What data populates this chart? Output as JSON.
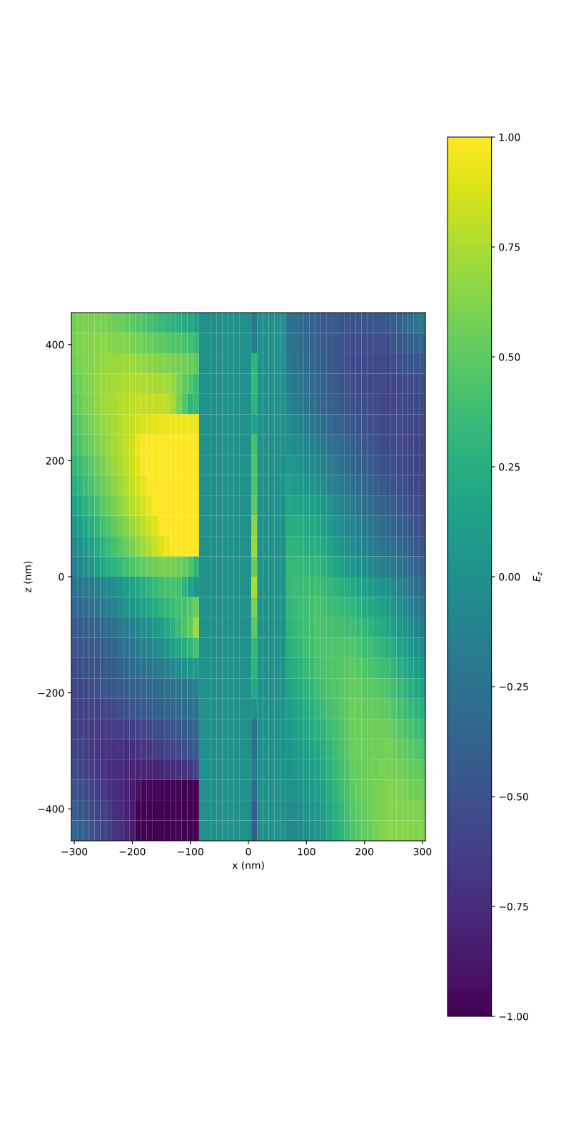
{
  "chart_data": {
    "type": "heatmap",
    "xlabel": "x (nm)",
    "ylabel": "z (nm)",
    "clabel": "E$_{z}$",
    "xlim": [
      -305,
      305
    ],
    "ylim": [
      -455,
      455
    ],
    "xticks": [
      -300,
      -200,
      -100,
      0,
      100,
      200,
      300
    ],
    "yticks": [
      -400,
      -200,
      0,
      200,
      400
    ],
    "clim": [
      -1,
      1
    ],
    "cticks": [
      {
        "value": -1,
        "label": "−1.00"
      },
      {
        "value": -0.75,
        "label": "−0.75"
      },
      {
        "value": -0.5,
        "label": "−0.50"
      },
      {
        "value": -0.25,
        "label": "−0.25"
      },
      {
        "value": 0,
        "label": "0.00"
      },
      {
        "value": 0.25,
        "label": "0.25"
      },
      {
        "value": 0.5,
        "label": "0.50"
      },
      {
        "value": 0.75,
        "label": "0.75"
      },
      {
        "value": 1,
        "label": "1.00"
      }
    ],
    "cells": [
      [
        0.6,
        0.6,
        0.6,
        0.6,
        0.6,
        0.6,
        0.58,
        0.56,
        0.54,
        0.52,
        0.5,
        0.47,
        0.44,
        0.41,
        0.38,
        0.35,
        0.32,
        0.29,
        0.26,
        0.23,
        0.2,
        0.15,
        0,
        0,
        0,
        0,
        0,
        0,
        0,
        0,
        0,
        -0.2,
        0,
        0,
        0,
        0,
        0,
        -0.25,
        -0.28,
        -0.31,
        -0.34,
        -0.37,
        -0.4,
        -0.42,
        -0.43,
        -0.45,
        -0.47,
        -0.48,
        -0.5,
        -0.49,
        -0.48,
        -0.48,
        -0.47,
        -0.46,
        -0.45,
        -0.41,
        -0.37,
        -0.33,
        -0.28,
        -0.24,
        -0.2
      ],
      [
        0.6,
        0.61,
        0.62,
        0.63,
        0.64,
        0.65,
        0.64,
        0.63,
        0.62,
        0.61,
        0.6,
        0.58,
        0.56,
        0.54,
        0.52,
        0.5,
        0.48,
        0.46,
        0.44,
        0.42,
        0.4,
        0.35,
        0,
        0,
        0,
        0,
        0,
        0,
        0,
        0,
        0,
        -0.15,
        0,
        0,
        0,
        0,
        0,
        -0.23,
        -0.26,
        -0.3,
        -0.33,
        -0.37,
        -0.4,
        -0.42,
        -0.44,
        -0.47,
        -0.49,
        -0.51,
        -0.53,
        -0.53,
        -0.53,
        -0.53,
        -0.52,
        -0.52,
        -0.52,
        -0.49,
        -0.46,
        -0.44,
        -0.41,
        -0.38,
        -0.35
      ],
      [
        0.57,
        0.59,
        0.61,
        0.64,
        0.66,
        0.68,
        0.68,
        0.69,
        0.69,
        0.7,
        0.7,
        0.68,
        0.67,
        0.65,
        0.64,
        0.62,
        0.61,
        0.6,
        0.58,
        0.56,
        0.55,
        0.5,
        0,
        0,
        0,
        0,
        0,
        0,
        0,
        0,
        0,
        0.3,
        0,
        0,
        0,
        0,
        0,
        -0.2,
        -0.24,
        -0.27,
        -0.31,
        -0.34,
        -0.38,
        -0.41,
        -0.44,
        -0.47,
        -0.49,
        -0.52,
        -0.55,
        -0.55,
        -0.55,
        -0.55,
        -0.56,
        -0.56,
        -0.56,
        -0.54,
        -0.52,
        -0.5,
        -0.49,
        -0.47,
        -0.45
      ],
      [
        0.53,
        0.56,
        0.6,
        0.63,
        0.67,
        0.7,
        0.71,
        0.72,
        0.74,
        0.75,
        0.76,
        0.76,
        0.75,
        0.75,
        0.74,
        0.74,
        0.72,
        0.68,
        0.6,
        0.5,
        0.45,
        0.35,
        0,
        0,
        0,
        0,
        0,
        0,
        0,
        0,
        0,
        0.35,
        0,
        0,
        0,
        0,
        0,
        -0.15,
        -0.19,
        -0.23,
        -0.28,
        -0.32,
        -0.36,
        -0.39,
        -0.42,
        -0.45,
        -0.47,
        -0.5,
        -0.53,
        -0.54,
        -0.55,
        -0.56,
        -0.56,
        -0.57,
        -0.58,
        -0.57,
        -0.56,
        -0.55,
        -0.54,
        -0.53,
        -0.52
      ],
      [
        0.5,
        0.54,
        0.58,
        0.62,
        0.66,
        0.7,
        0.72,
        0.74,
        0.76,
        0.78,
        0.8,
        0.81,
        0.82,
        0.82,
        0.82,
        0.82,
        0.8,
        0.72,
        0.6,
        0.45,
        0.3,
        0.35,
        0,
        0,
        0,
        0,
        0,
        0,
        0,
        0,
        0,
        0.3,
        0,
        0,
        0,
        0,
        0,
        -0.1,
        -0.15,
        -0.19,
        -0.24,
        -0.28,
        -0.33,
        -0.36,
        -0.39,
        -0.42,
        -0.44,
        -0.47,
        -0.5,
        -0.51,
        -0.53,
        -0.54,
        -0.55,
        -0.57,
        -0.58,
        -0.58,
        -0.57,
        -0.57,
        -0.57,
        -0.56,
        -0.56
      ],
      [
        0.45,
        0.5,
        0.54,
        0.59,
        0.63,
        0.68,
        0.71,
        0.74,
        0.77,
        0.8,
        0.83,
        0.86,
        0.88,
        0.9,
        0.92,
        0.94,
        0.95,
        0.95,
        0.95,
        0.95,
        0.95,
        0.95,
        0,
        0,
        0,
        0,
        0,
        0,
        0,
        0,
        0,
        0.15,
        0,
        0,
        0,
        0,
        0,
        -0.05,
        -0.09,
        -0.13,
        -0.17,
        -0.21,
        -0.25,
        -0.29,
        -0.32,
        -0.36,
        -0.39,
        -0.43,
        -0.46,
        -0.48,
        -0.5,
        -0.52,
        -0.53,
        -0.55,
        -0.57,
        -0.57,
        -0.57,
        -0.57,
        -0.58,
        -0.58,
        -0.58
      ],
      [
        0.4,
        0.45,
        0.5,
        0.55,
        0.6,
        0.65,
        0.69,
        0.73,
        0.77,
        0.81,
        0.85,
        0.95,
        1,
        1,
        1,
        1,
        1,
        1,
        1,
        1,
        1,
        1,
        0,
        0,
        0,
        0,
        0,
        0,
        0,
        0,
        0,
        0.4,
        0,
        0,
        0,
        0,
        0,
        0,
        -0.03,
        -0.07,
        -0.1,
        -0.14,
        -0.17,
        -0.21,
        -0.25,
        -0.29,
        -0.32,
        -0.36,
        -0.4,
        -0.43,
        -0.45,
        -0.48,
        -0.5,
        -0.53,
        -0.55,
        -0.56,
        -0.57,
        -0.58,
        -0.58,
        -0.59,
        -0.6
      ],
      [
        0.32,
        0.38,
        0.43,
        0.49,
        0.54,
        0.6,
        0.65,
        0.7,
        0.75,
        0.8,
        0.85,
        0.92,
        1,
        1,
        1,
        1,
        1,
        1,
        1,
        1,
        1,
        1,
        0,
        0,
        0,
        0,
        0,
        0,
        0,
        0,
        0,
        0.45,
        0,
        0,
        0,
        0,
        0,
        0.07,
        0.04,
        0.01,
        -0.02,
        -0.05,
        -0.08,
        -0.12,
        -0.17,
        -0.21,
        -0.25,
        -0.3,
        -0.34,
        -0.37,
        -0.4,
        -0.43,
        -0.46,
        -0.49,
        -0.52,
        -0.53,
        -0.55,
        -0.56,
        -0.57,
        -0.59,
        -0.6
      ],
      [
        0.25,
        0.31,
        0.37,
        0.43,
        0.49,
        0.55,
        0.6,
        0.66,
        0.71,
        0.77,
        0.82,
        0.88,
        0.94,
        1,
        1,
        1,
        1,
        1,
        1,
        1,
        1,
        1,
        0,
        0,
        0,
        0,
        0,
        0,
        0,
        0,
        0,
        0.45,
        0,
        0,
        0,
        0,
        0,
        0.13,
        0.1,
        0.08,
        0.05,
        0.03,
        0,
        -0.05,
        -0.09,
        -0.14,
        -0.18,
        -0.23,
        -0.27,
        -0.3,
        -0.34,
        -0.37,
        -0.4,
        -0.44,
        -0.47,
        -0.49,
        -0.51,
        -0.54,
        -0.56,
        -0.58,
        -0.6
      ],
      [
        0.15,
        0.22,
        0.28,
        0.35,
        0.41,
        0.48,
        0.54,
        0.6,
        0.66,
        0.72,
        0.78,
        0.83,
        0.88,
        0.94,
        1,
        1,
        1,
        1,
        1,
        1,
        1,
        1,
        0,
        0,
        0,
        0,
        0,
        0,
        0,
        0,
        0,
        0.5,
        0,
        0,
        0,
        0,
        0,
        0.2,
        0.18,
        0.16,
        0.14,
        0.12,
        0.1,
        0.05,
        0,
        -0.05,
        -0.1,
        -0.15,
        -0.2,
        -0.23,
        -0.27,
        -0.3,
        -0.33,
        -0.37,
        -0.4,
        -0.43,
        -0.46,
        -0.48,
        -0.51,
        -0.54,
        -0.57
      ],
      [
        0.05,
        0.12,
        0.19,
        0.26,
        0.33,
        0.4,
        0.46,
        0.52,
        0.58,
        0.64,
        0.7,
        0.75,
        0.8,
        0.86,
        0.92,
        1,
        1,
        1,
        1,
        1,
        1,
        1,
        0,
        0,
        0,
        0,
        0,
        0,
        0,
        0,
        0,
        0.65,
        0,
        0,
        0,
        0,
        0,
        0.26,
        0.24,
        0.23,
        0.21,
        0.2,
        0.18,
        0.13,
        0.08,
        0.03,
        -0.02,
        -0.07,
        -0.12,
        -0.16,
        -0.19,
        -0.23,
        -0.26,
        -0.3,
        -0.33,
        -0.36,
        -0.4,
        -0.43,
        -0.46,
        -0.5,
        -0.53
      ],
      [
        -0.05,
        0.02,
        0.09,
        0.16,
        0.23,
        0.3,
        0.36,
        0.42,
        0.48,
        0.54,
        0.6,
        0.66,
        0.72,
        0.78,
        0.84,
        0.9,
        0.95,
        1,
        1,
        1,
        1,
        1,
        0,
        0,
        0,
        0,
        0,
        0,
        0,
        0,
        0,
        0.7,
        0,
        0,
        0,
        0,
        0,
        0.3,
        0.29,
        0.28,
        0.27,
        0.26,
        0.25,
        0.2,
        0.15,
        0.1,
        0.05,
        0,
        -0.05,
        -0.08,
        -0.12,
        -0.15,
        -0.18,
        -0.22,
        -0.25,
        -0.29,
        -0.32,
        -0.36,
        -0.4,
        -0.43,
        -0.47
      ],
      [
        -0.15,
        -0.08,
        -0.01,
        0.06,
        0.13,
        0.2,
        0.25,
        0.3,
        0.35,
        0.4,
        0.45,
        0.48,
        0.51,
        0.54,
        0.57,
        0.6,
        0.6,
        0.58,
        0.56,
        0.52,
        0.45,
        0.3,
        0,
        0,
        0,
        0,
        0,
        0,
        0,
        0,
        0,
        0.55,
        0,
        0,
        0,
        0,
        0,
        0.33,
        0.33,
        0.33,
        0.32,
        0.32,
        0.32,
        0.28,
        0.23,
        0.19,
        0.14,
        0.1,
        0.05,
        0.01,
        -0.02,
        -0.06,
        -0.1,
        -0.13,
        -0.17,
        -0.21,
        -0.25,
        -0.29,
        -0.32,
        -0.36,
        -0.4
      ],
      [
        -0.25,
        -0.22,
        -0.19,
        -0.16,
        -0.13,
        -0.1,
        -0.05,
        0,
        0.05,
        0.1,
        0.15,
        0.2,
        0.25,
        0.3,
        0.35,
        0.4,
        0.42,
        0.42,
        0.4,
        0.3,
        0.15,
        0.05,
        0,
        0,
        0,
        0,
        0,
        0,
        0,
        0,
        0,
        0.75,
        0,
        0,
        0,
        0,
        0,
        0.35,
        0.36,
        0.36,
        0.37,
        0.37,
        0.38,
        0.35,
        0.32,
        0.29,
        0.26,
        0.23,
        0.2,
        0.17,
        0.13,
        0.1,
        0.07,
        0.03,
        0,
        -0.05,
        -0.11,
        -0.16,
        -0.21,
        -0.27,
        -0.32
      ],
      [
        -0.35,
        -0.32,
        -0.29,
        -0.26,
        -0.23,
        -0.2,
        -0.15,
        -0.1,
        -0.05,
        0,
        0.05,
        0.1,
        0.15,
        0.2,
        0.25,
        0.3,
        0.33,
        0.36,
        0.4,
        0.42,
        0.45,
        0.55,
        0,
        0,
        0,
        0,
        0,
        0,
        0,
        0,
        0,
        0.6,
        0,
        0,
        0,
        0,
        0,
        0.33,
        0.35,
        0.37,
        0.38,
        0.4,
        0.42,
        0.4,
        0.38,
        0.36,
        0.34,
        0.32,
        0.3,
        0.27,
        0.23,
        0.2,
        0.17,
        0.13,
        0.1,
        0.04,
        -0.01,
        -0.07,
        -0.13,
        -0.18,
        -0.24
      ],
      [
        -0.45,
        -0.43,
        -0.4,
        -0.38,
        -0.35,
        -0.33,
        -0.29,
        -0.25,
        -0.21,
        -0.17,
        -0.13,
        -0.08,
        -0.03,
        0.02,
        0.07,
        0.12,
        0.2,
        0.28,
        0.36,
        0.43,
        0.5,
        0.7,
        0,
        0,
        0,
        0,
        0,
        0,
        0,
        0,
        0,
        0.5,
        0,
        0,
        0,
        0,
        0,
        0.3,
        0.33,
        0.36,
        0.38,
        0.41,
        0.44,
        0.43,
        0.42,
        0.41,
        0.4,
        0.39,
        0.38,
        0.35,
        0.32,
        0.29,
        0.26,
        0.23,
        0.2,
        0.14,
        0.08,
        0.03,
        -0.03,
        -0.09,
        -0.15
      ],
      [
        -0.5,
        -0.48,
        -0.47,
        -0.45,
        -0.44,
        -0.42,
        -0.38,
        -0.34,
        -0.3,
        -0.26,
        -0.22,
        -0.18,
        -0.13,
        -0.09,
        -0.04,
        0,
        0.06,
        0.12,
        0.18,
        0.24,
        0.3,
        0.4,
        0,
        0,
        0,
        0,
        0,
        0,
        0,
        0,
        0,
        0.35,
        0,
        0,
        0,
        0,
        0,
        0.28,
        0.31,
        0.34,
        0.38,
        0.41,
        0.44,
        0.44,
        0.44,
        0.44,
        0.45,
        0.45,
        0.45,
        0.42,
        0.39,
        0.37,
        0.34,
        0.31,
        0.28,
        0.23,
        0.17,
        0.12,
        0.06,
        0.01,
        -0.05
      ],
      [
        -0.55,
        -0.53,
        -0.52,
        -0.5,
        -0.49,
        -0.47,
        -0.44,
        -0.41,
        -0.38,
        -0.35,
        -0.32,
        -0.29,
        -0.25,
        -0.22,
        -0.18,
        -0.15,
        -0.11,
        -0.07,
        -0.03,
        0.01,
        0.05,
        0.1,
        0,
        0,
        0,
        0,
        0,
        0,
        0,
        0,
        0,
        0.3,
        0,
        0,
        0,
        0,
        0,
        0.22,
        0.26,
        0.3,
        0.34,
        0.38,
        0.42,
        0.43,
        0.45,
        0.46,
        0.47,
        0.49,
        0.5,
        0.48,
        0.45,
        0.43,
        0.41,
        0.38,
        0.36,
        0.31,
        0.26,
        0.2,
        0.15,
        0.1,
        0.05
      ],
      [
        -0.6,
        -0.58,
        -0.56,
        -0.54,
        -0.52,
        -0.5,
        -0.48,
        -0.46,
        -0.44,
        -0.42,
        -0.4,
        -0.38,
        -0.36,
        -0.34,
        -0.32,
        -0.3,
        -0.28,
        -0.26,
        -0.24,
        -0.22,
        -0.2,
        -0.15,
        0,
        0,
        0,
        0,
        0,
        0,
        0,
        0,
        0,
        0.2,
        0,
        0,
        0,
        0,
        0,
        0.17,
        0.21,
        0.25,
        0.3,
        0.34,
        0.38,
        0.41,
        0.43,
        0.46,
        0.48,
        0.51,
        0.53,
        0.52,
        0.5,
        0.49,
        0.47,
        0.46,
        0.44,
        0.39,
        0.34,
        0.3,
        0.25,
        0.2,
        0.15
      ],
      [
        -0.62,
        -0.61,
        -0.6,
        -0.6,
        -0.59,
        -0.58,
        -0.56,
        -0.54,
        -0.52,
        -0.5,
        -0.48,
        -0.46,
        -0.44,
        -0.42,
        -0.4,
        -0.38,
        -0.36,
        -0.34,
        -0.32,
        -0.3,
        -0.28,
        -0.25,
        0,
        0,
        0,
        0,
        0,
        0,
        0,
        0,
        0,
        0,
        0,
        0,
        0,
        0,
        0,
        0.12,
        0.16,
        0.2,
        0.24,
        0.28,
        0.32,
        0.36,
        0.4,
        0.44,
        0.47,
        0.51,
        0.55,
        0.54,
        0.53,
        0.52,
        0.52,
        0.51,
        0.5,
        0.46,
        0.42,
        0.38,
        0.33,
        0.29,
        0.25
      ],
      [
        -0.63,
        -0.64,
        -0.64,
        -0.65,
        -0.65,
        -0.66,
        -0.65,
        -0.64,
        -0.64,
        -0.63,
        -0.62,
        -0.6,
        -0.58,
        -0.56,
        -0.54,
        -0.52,
        -0.5,
        -0.48,
        -0.46,
        -0.44,
        -0.42,
        -0.35,
        0,
        0,
        0,
        0,
        0,
        0,
        0,
        0,
        0,
        -0.25,
        0,
        0,
        0,
        0,
        0,
        0.08,
        0.12,
        0.15,
        0.19,
        0.22,
        0.26,
        0.31,
        0.36,
        0.4,
        0.45,
        0.5,
        0.55,
        0.55,
        0.55,
        0.55,
        0.55,
        0.55,
        0.55,
        0.52,
        0.48,
        0.45,
        0.42,
        0.38,
        0.35
      ],
      [
        -0.6,
        -0.62,
        -0.64,
        -0.66,
        -0.68,
        -0.7,
        -0.7,
        -0.71,
        -0.71,
        -0.72,
        -0.72,
        -0.7,
        -0.68,
        -0.66,
        -0.64,
        -0.62,
        -0.6,
        -0.58,
        -0.55,
        -0.52,
        -0.5,
        -0.42,
        0,
        0,
        0,
        0,
        0,
        0,
        0,
        0,
        0,
        -0.25,
        0,
        0,
        0,
        0,
        0,
        0.05,
        0.08,
        0.11,
        0.14,
        0.17,
        0.2,
        0.26,
        0.31,
        0.37,
        0.43,
        0.48,
        0.54,
        0.55,
        0.55,
        0.56,
        0.57,
        0.57,
        0.58,
        0.56,
        0.53,
        0.51,
        0.48,
        0.46,
        0.43
      ],
      [
        -0.55,
        -0.58,
        -0.61,
        -0.64,
        -0.67,
        -0.7,
        -0.72,
        -0.74,
        -0.76,
        -0.78,
        -0.8,
        -0.8,
        -0.8,
        -0.79,
        -0.79,
        -0.78,
        -0.76,
        -0.74,
        -0.72,
        -0.7,
        -0.68,
        -0.6,
        0,
        0,
        0,
        0,
        0,
        0,
        0,
        0,
        0,
        -0.15,
        0,
        0,
        0,
        0,
        0,
        0.02,
        0.05,
        0.07,
        0.1,
        0.12,
        0.15,
        0.21,
        0.27,
        0.34,
        0.4,
        0.46,
        0.52,
        0.53,
        0.55,
        0.56,
        0.57,
        0.59,
        0.6,
        0.58,
        0.57,
        0.55,
        0.53,
        0.52,
        0.5
      ],
      [
        -0.5,
        -0.53,
        -0.57,
        -0.6,
        -0.64,
        -0.67,
        -0.71,
        -0.74,
        -0.78,
        -0.81,
        -0.85,
        -0.92,
        -0.97,
        -0.97,
        -0.97,
        -0.97,
        -0.98,
        -0.98,
        -0.99,
        -0.99,
        -1,
        -1,
        0,
        0,
        0,
        0,
        0,
        0,
        0,
        0,
        0,
        -0.3,
        0,
        0,
        0,
        0,
        0,
        0,
        0.02,
        0.04,
        0.06,
        0.08,
        0.1,
        0.17,
        0.23,
        0.3,
        0.37,
        0.43,
        0.5,
        0.52,
        0.54,
        0.56,
        0.58,
        0.6,
        0.62,
        0.61,
        0.6,
        0.58,
        0.57,
        0.56,
        0.55
      ],
      [
        -0.42,
        -0.46,
        -0.5,
        -0.55,
        -0.59,
        -0.63,
        -0.67,
        -0.72,
        -0.76,
        -0.81,
        -0.85,
        -1,
        -1,
        -1,
        -1,
        -1,
        -1,
        -1,
        -1,
        -1,
        -1,
        -1,
        0,
        0,
        0,
        0,
        0,
        0,
        0,
        0,
        0,
        -0.4,
        0,
        0,
        0,
        0,
        0,
        -0.05,
        -0.03,
        -0.01,
        0.02,
        0.04,
        0.06,
        0.13,
        0.2,
        0.27,
        0.33,
        0.4,
        0.47,
        0.5,
        0.52,
        0.55,
        0.58,
        0.6,
        0.63,
        0.63,
        0.62,
        0.62,
        0.61,
        0.61,
        0.6
      ],
      [
        -0.33,
        -0.38,
        -0.43,
        -0.48,
        -0.53,
        -0.58,
        -0.63,
        -0.69,
        -0.74,
        -0.8,
        -0.85,
        -1,
        -1,
        -1,
        -1,
        -1,
        -1,
        -1,
        -1,
        -1,
        -1,
        -1,
        0,
        0,
        0,
        0,
        0,
        0,
        0,
        0,
        0,
        -0.4,
        0,
        0,
        0,
        0,
        0,
        -0.08,
        -0.06,
        -0.04,
        -0.01,
        0.01,
        0.03,
        0.1,
        0.17,
        0.24,
        0.31,
        0.38,
        0.45,
        0.48,
        0.51,
        0.54,
        0.58,
        0.61,
        0.64,
        0.64,
        0.63,
        0.63,
        0.63,
        0.62,
        0.62
      ]
    ]
  }
}
